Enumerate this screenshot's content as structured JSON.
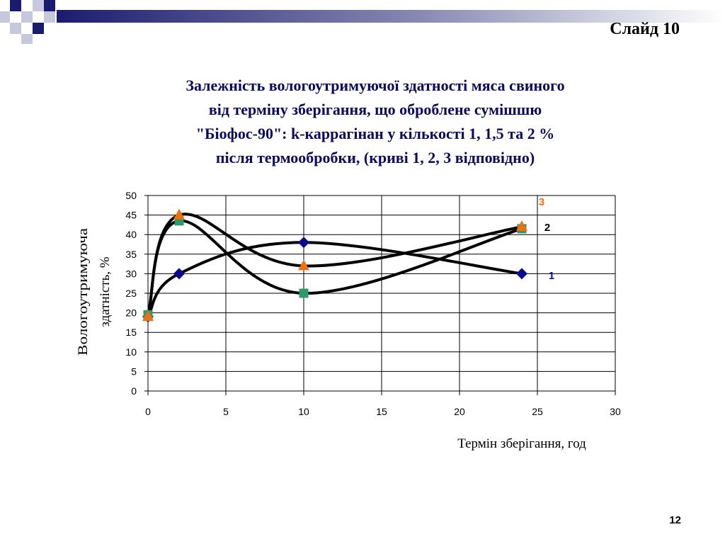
{
  "slide": {
    "label": "Слайд 10",
    "page_number": "12"
  },
  "colors": {
    "title": "#0b0b5e",
    "series1": "#0a0a8c",
    "series2": "#2e9a6a",
    "series3": "#f07010",
    "curve": "#000000",
    "grid": "#000000"
  },
  "chart_data": {
    "type": "line",
    "title_lines": [
      "Залежність вологоутримуючої здатності мяса свиного",
      "від терміну зберігання, що оброблене сумішшю",
      "\"Біофос-90\":  k-каррагінан у кількості 1, 1,5 та 2 %",
      "після термообробки, (криві 1, 2, 3 відповідно)"
    ],
    "xlabel": "Термін зберігання, год",
    "ylabel_lines": [
      "Вологоутримуюча",
      "здатність, %"
    ],
    "xlim": [
      0,
      30
    ],
    "ylim": [
      0,
      50
    ],
    "xticks": [
      0,
      5,
      10,
      15,
      20,
      25,
      30
    ],
    "yticks": [
      0,
      5,
      10,
      15,
      20,
      25,
      30,
      35,
      40,
      45,
      50
    ],
    "grid": true,
    "series": [
      {
        "name": "1",
        "marker": "diamond",
        "color_key": "series1",
        "points": [
          [
            0,
            19
          ],
          [
            2,
            30
          ],
          [
            10,
            38
          ],
          [
            24,
            30
          ]
        ]
      },
      {
        "name": "2",
        "marker": "square",
        "color_key": "series2",
        "points": [
          [
            0,
            19.5
          ],
          [
            2,
            43.5
          ],
          [
            10,
            25
          ],
          [
            24,
            41.5
          ]
        ]
      },
      {
        "name": "3",
        "marker": "triangle",
        "color_key": "series3",
        "points": [
          [
            0,
            19
          ],
          [
            2,
            45
          ],
          [
            10,
            32
          ],
          [
            24,
            42
          ]
        ]
      }
    ]
  }
}
